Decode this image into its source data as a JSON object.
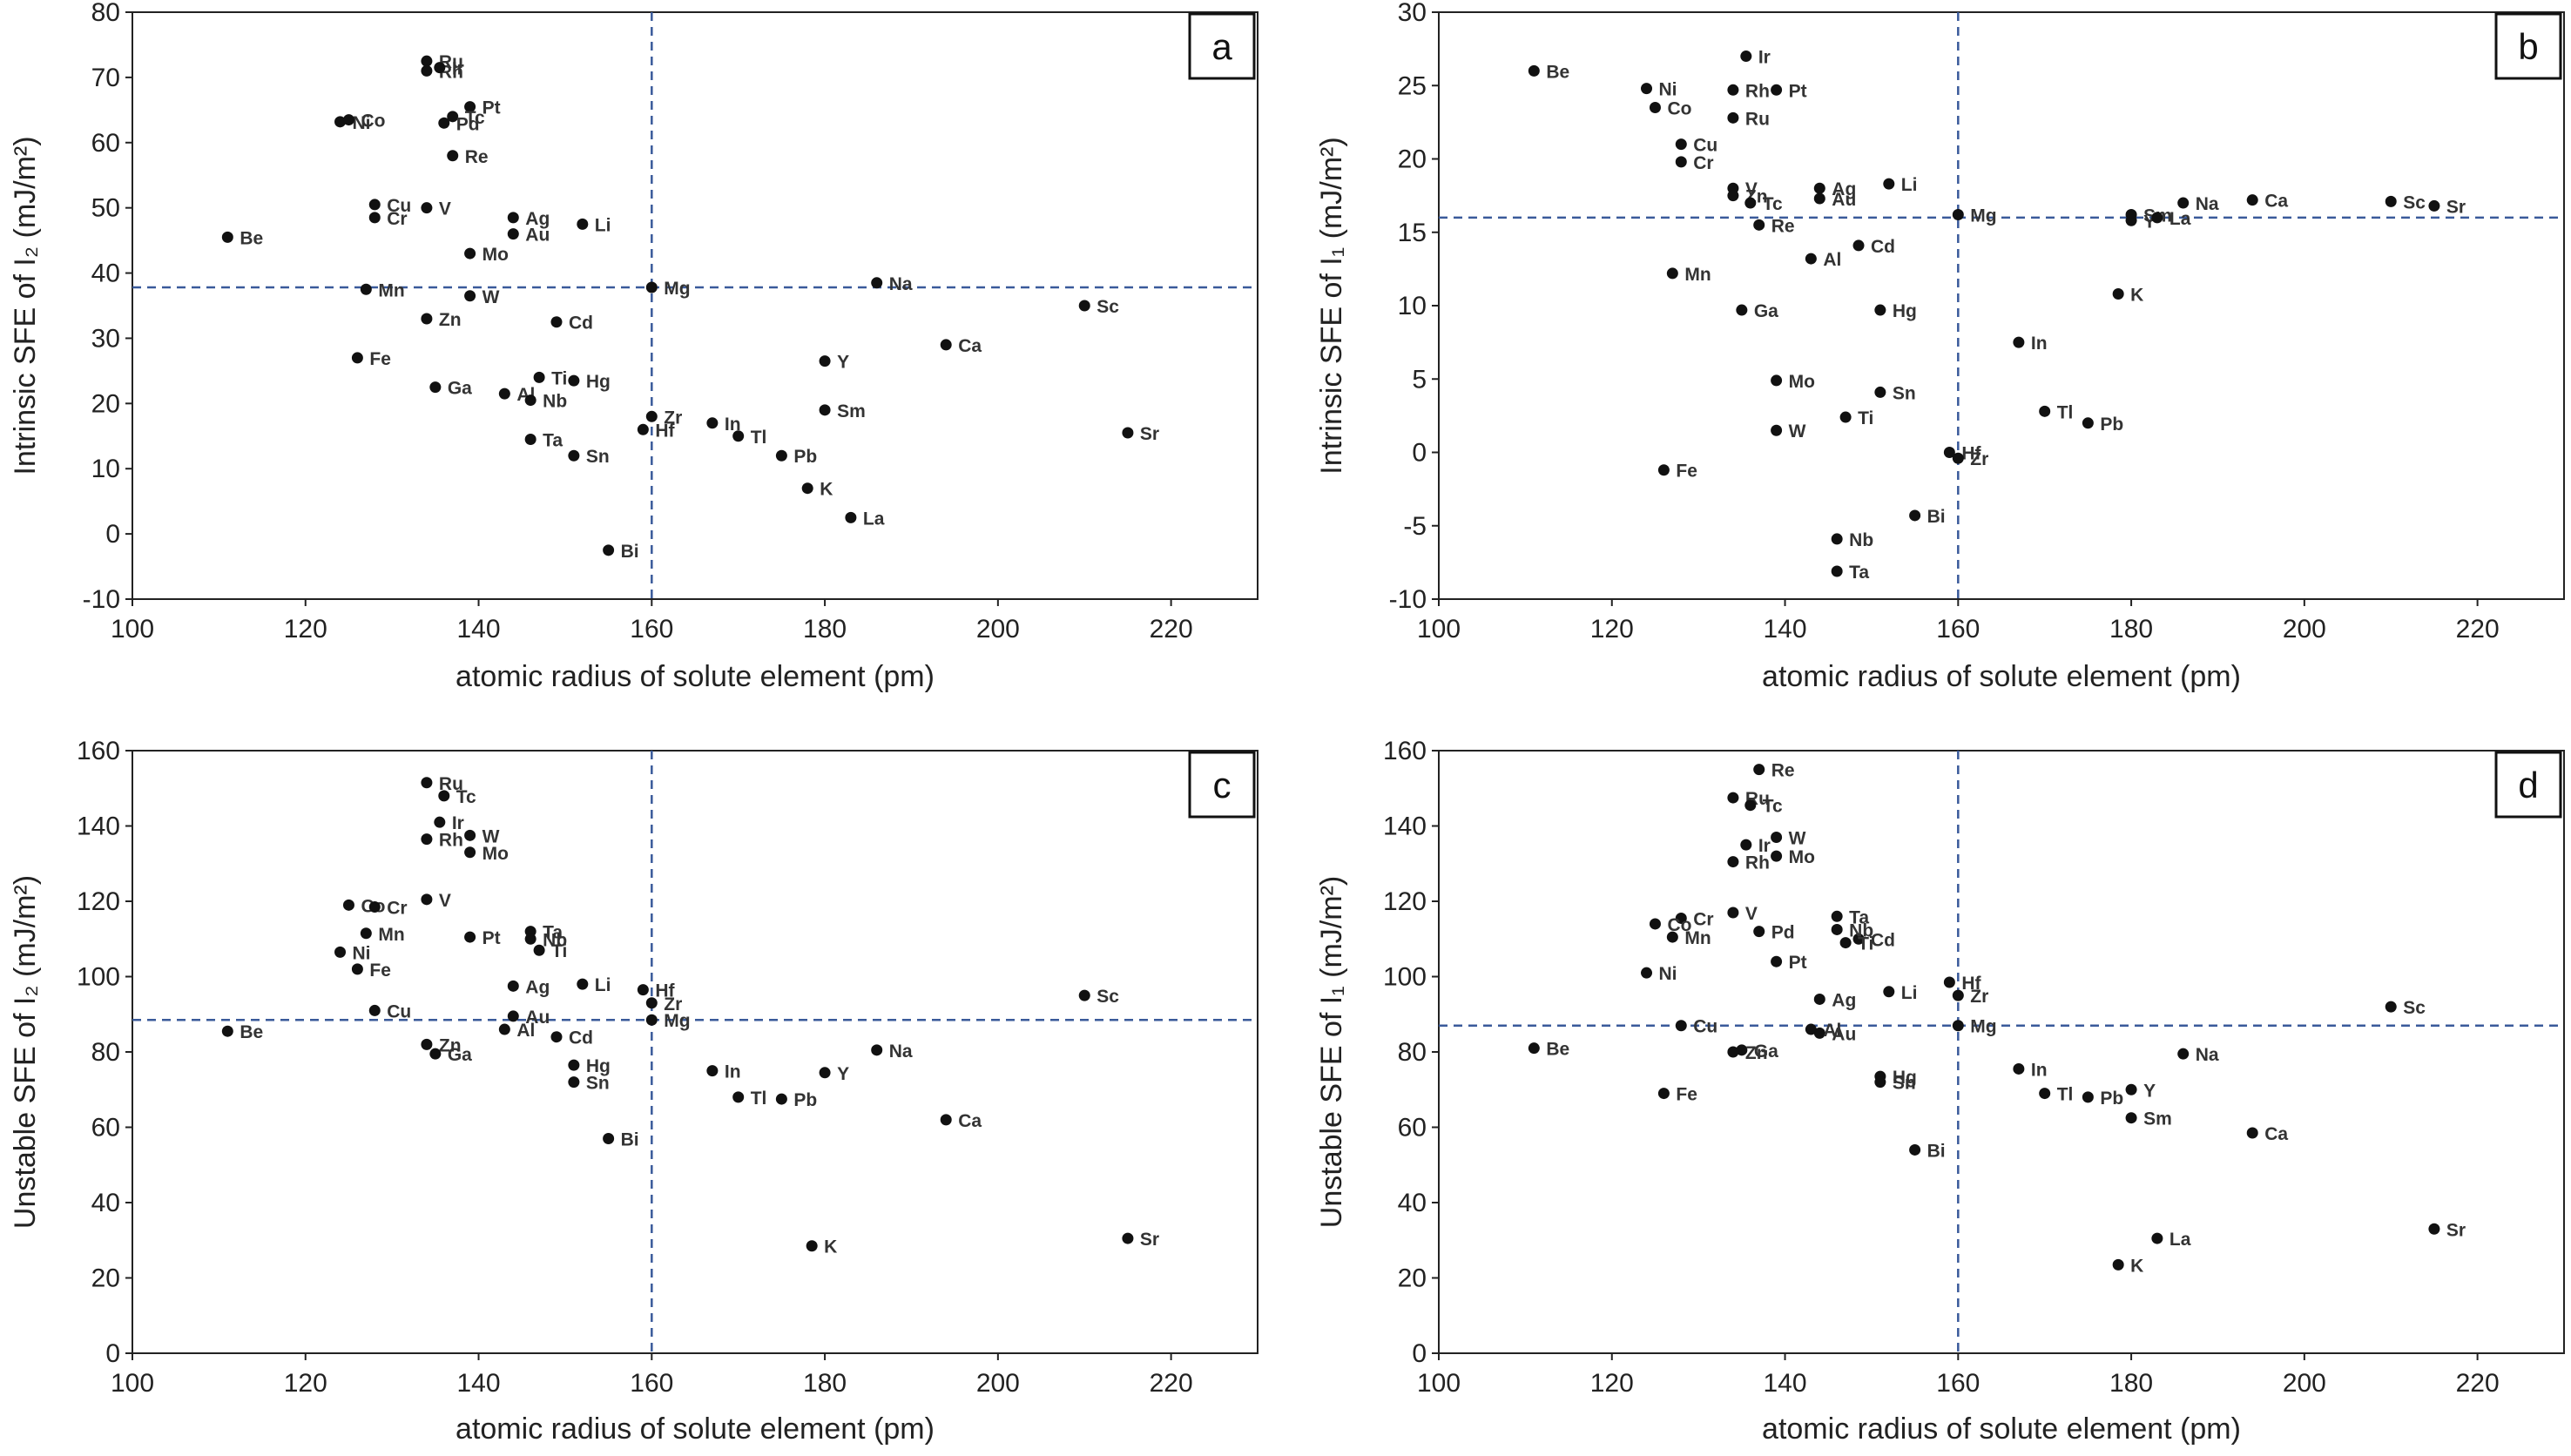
{
  "chart_data": [
    {
      "type": "scatter",
      "panel_label": "a",
      "xlabel": "atomic radius of solute element (pm)",
      "ylabel": "Intrinsic SFE of I₂ (mJ/m²)",
      "xlim": [
        100,
        230
      ],
      "ylim": [
        -10,
        80
      ],
      "xticks": [
        "100",
        "120",
        "140",
        "160",
        "180",
        "200",
        "220"
      ],
      "yticks": [
        "-10",
        "0",
        "10",
        "20",
        "30",
        "40",
        "50",
        "60",
        "70",
        "80"
      ],
      "xtick_values": [
        100,
        120,
        140,
        160,
        180,
        200,
        220
      ],
      "ytick_values": [
        -10,
        0,
        10,
        20,
        30,
        40,
        50,
        60,
        70,
        80
      ],
      "reference_lines": {
        "x": 160,
        "y": 37.8
      },
      "points": [
        {
          "label": "Ru",
          "x": 134,
          "y": 72.5
        },
        {
          "label": "Rh",
          "x": 134,
          "y": 71
        },
        {
          "label": "Ir",
          "x": 135.5,
          "y": 71.5
        },
        {
          "label": "Pt",
          "x": 139,
          "y": 65.5
        },
        {
          "label": "Tc",
          "x": 137,
          "y": 64
        },
        {
          "label": "Pd",
          "x": 136,
          "y": 63
        },
        {
          "label": "Ni",
          "x": 124,
          "y": 63.2
        },
        {
          "label": "Co",
          "x": 125,
          "y": 63.5
        },
        {
          "label": "Re",
          "x": 137,
          "y": 58
        },
        {
          "label": "Cu",
          "x": 128,
          "y": 50.5
        },
        {
          "label": "Cr",
          "x": 128,
          "y": 48.5
        },
        {
          "label": "V",
          "x": 134,
          "y": 50
        },
        {
          "label": "Ag",
          "x": 144,
          "y": 48.5
        },
        {
          "label": "Li",
          "x": 152,
          "y": 47.5
        },
        {
          "label": "Au",
          "x": 144,
          "y": 46
        },
        {
          "label": "Be",
          "x": 111,
          "y": 45.5
        },
        {
          "label": "Mo",
          "x": 139,
          "y": 43
        },
        {
          "label": "Mg",
          "x": 160,
          "y": 37.8
        },
        {
          "label": "Na",
          "x": 186,
          "y": 38.5
        },
        {
          "label": "Mn",
          "x": 127,
          "y": 37.5
        },
        {
          "label": "W",
          "x": 139,
          "y": 36.5
        },
        {
          "label": "Sc",
          "x": 210,
          "y": 35
        },
        {
          "label": "Zn",
          "x": 134,
          "y": 33
        },
        {
          "label": "Cd",
          "x": 149,
          "y": 32.5
        },
        {
          "label": "Ca",
          "x": 194,
          "y": 29
        },
        {
          "label": "Fe",
          "x": 126,
          "y": 27
        },
        {
          "label": "Y",
          "x": 180,
          "y": 26.5
        },
        {
          "label": "Ti",
          "x": 147,
          "y": 24
        },
        {
          "label": "Hg",
          "x": 151,
          "y": 23.5
        },
        {
          "label": "Ga",
          "x": 135,
          "y": 22.5
        },
        {
          "label": "Al",
          "x": 143,
          "y": 21.5
        },
        {
          "label": "Nb",
          "x": 146,
          "y": 20.5
        },
        {
          "label": "Sm",
          "x": 180,
          "y": 19
        },
        {
          "label": "Zr",
          "x": 160,
          "y": 18
        },
        {
          "label": "Hf",
          "x": 159,
          "y": 16
        },
        {
          "label": "In",
          "x": 167,
          "y": 17
        },
        {
          "label": "Sr",
          "x": 215,
          "y": 15.5
        },
        {
          "label": "Tl",
          "x": 170,
          "y": 15
        },
        {
          "label": "Ta",
          "x": 146,
          "y": 14.5
        },
        {
          "label": "Sn",
          "x": 151,
          "y": 12
        },
        {
          "label": "Pb",
          "x": 175,
          "y": 12
        },
        {
          "label": "K",
          "x": 178,
          "y": 7
        },
        {
          "label": "La",
          "x": 183,
          "y": 2.5
        },
        {
          "label": "Bi",
          "x": 155,
          "y": -2.5
        }
      ]
    },
    {
      "type": "scatter",
      "panel_label": "b",
      "xlabel": "atomic radius of solute element (pm)",
      "ylabel": "Intrinsic SFE of I₁ (mJ/m²)",
      "xlim": [
        100,
        230
      ],
      "ylim": [
        -10,
        30
      ],
      "xticks": [
        "100",
        "120",
        "140",
        "160",
        "180",
        "200",
        "220"
      ],
      "yticks": [
        "-10",
        "-5",
        "0",
        "5",
        "10",
        "15",
        "20",
        "25",
        "30"
      ],
      "xtick_values": [
        100,
        120,
        140,
        160,
        180,
        200,
        220
      ],
      "ytick_values": [
        -10,
        -5,
        0,
        5,
        10,
        15,
        20,
        25,
        30
      ],
      "reference_lines": {
        "x": 160,
        "y": 16
      },
      "points": [
        {
          "label": "Ir",
          "x": 135.5,
          "y": 27
        },
        {
          "label": "Be",
          "x": 111,
          "y": 26
        },
        {
          "label": "Ni",
          "x": 124,
          "y": 24.8
        },
        {
          "label": "Rh",
          "x": 134,
          "y": 24.7
        },
        {
          "label": "Pt",
          "x": 139,
          "y": 24.7
        },
        {
          "label": "Co",
          "x": 125,
          "y": 23.5
        },
        {
          "label": "Ru",
          "x": 134,
          "y": 22.8
        },
        {
          "label": "Cu",
          "x": 128,
          "y": 21
        },
        {
          "label": "Cr",
          "x": 128,
          "y": 19.8
        },
        {
          "label": "V",
          "x": 134,
          "y": 18
        },
        {
          "label": "Zn",
          "x": 134,
          "y": 17.5
        },
        {
          "label": "Ag",
          "x": 144,
          "y": 18
        },
        {
          "label": "Li",
          "x": 152,
          "y": 18.3
        },
        {
          "label": "Au",
          "x": 144,
          "y": 17.3
        },
        {
          "label": "Tc",
          "x": 136,
          "y": 17
        },
        {
          "label": "Mg",
          "x": 160,
          "y": 16.2
        },
        {
          "label": "Sm",
          "x": 180,
          "y": 16.2
        },
        {
          "label": "Na",
          "x": 186,
          "y": 17
        },
        {
          "label": "Ca",
          "x": 194,
          "y": 17.2
        },
        {
          "label": "Sc",
          "x": 210,
          "y": 17.1
        },
        {
          "label": "Sr",
          "x": 215,
          "y": 16.8
        },
        {
          "label": "Y",
          "x": 180,
          "y": 15.8
        },
        {
          "label": "La",
          "x": 183,
          "y": 16
        },
        {
          "label": "Re",
          "x": 137,
          "y": 15.5
        },
        {
          "label": "Cd",
          "x": 148.5,
          "y": 14.1
        },
        {
          "label": "Al",
          "x": 143,
          "y": 13.2
        },
        {
          "label": "Mn",
          "x": 127,
          "y": 12.2
        },
        {
          "label": "K",
          "x": 178.5,
          "y": 10.8
        },
        {
          "label": "Ga",
          "x": 135,
          "y": 9.7
        },
        {
          "label": "Hg",
          "x": 151,
          "y": 9.7
        },
        {
          "label": "In",
          "x": 167,
          "y": 7.5
        },
        {
          "label": "Mo",
          "x": 139,
          "y": 4.9
        },
        {
          "label": "Sn",
          "x": 151,
          "y": 4.1
        },
        {
          "label": "Tl",
          "x": 170,
          "y": 2.8
        },
        {
          "label": "Ti",
          "x": 147,
          "y": 2.4
        },
        {
          "label": "Pb",
          "x": 175,
          "y": 2
        },
        {
          "label": "W",
          "x": 139,
          "y": 1.5
        },
        {
          "label": "Hf",
          "x": 159,
          "y": 0
        },
        {
          "label": "Zr",
          "x": 160,
          "y": -0.4
        },
        {
          "label": "Fe",
          "x": 126,
          "y": -1.2
        },
        {
          "label": "Bi",
          "x": 155,
          "y": -4.3
        },
        {
          "label": "Nb",
          "x": 146,
          "y": -5.9
        },
        {
          "label": "Ta",
          "x": 146,
          "y": -8.1
        }
      ]
    },
    {
      "type": "scatter",
      "panel_label": "c",
      "xlabel": "atomic radius of solute element (pm)",
      "ylabel": "Unstable SFE of I₂ (mJ/m²)",
      "xlim": [
        100,
        230
      ],
      "ylim": [
        0,
        160
      ],
      "xticks": [
        "100",
        "120",
        "140",
        "160",
        "180",
        "200",
        "220"
      ],
      "yticks": [
        "0",
        "20",
        "40",
        "60",
        "80",
        "100",
        "120",
        "140",
        "160"
      ],
      "xtick_values": [
        100,
        120,
        140,
        160,
        180,
        200,
        220
      ],
      "ytick_values": [
        0,
        20,
        40,
        60,
        80,
        100,
        120,
        140,
        160
      ],
      "reference_lines": {
        "x": 160,
        "y": 88.5
      },
      "points": [
        {
          "label": "Ru",
          "x": 134,
          "y": 151.5
        },
        {
          "label": "Tc",
          "x": 136,
          "y": 148
        },
        {
          "label": "Ir",
          "x": 135.5,
          "y": 141
        },
        {
          "label": "W",
          "x": 139,
          "y": 137.5
        },
        {
          "label": "Rh",
          "x": 134,
          "y": 136.5
        },
        {
          "label": "Mo",
          "x": 139,
          "y": 133
        },
        {
          "label": "Co",
          "x": 125,
          "y": 119
        },
        {
          "label": "Cr",
          "x": 128,
          "y": 118.5
        },
        {
          "label": "V",
          "x": 134,
          "y": 120.5
        },
        {
          "label": "Mn",
          "x": 127,
          "y": 111.5
        },
        {
          "label": "Ta",
          "x": 146,
          "y": 112
        },
        {
          "label": "Pt",
          "x": 139,
          "y": 110.5
        },
        {
          "label": "Nb",
          "x": 146,
          "y": 110
        },
        {
          "label": "Ti",
          "x": 147,
          "y": 107
        },
        {
          "label": "Ni",
          "x": 124,
          "y": 106.5
        },
        {
          "label": "Fe",
          "x": 126,
          "y": 102
        },
        {
          "label": "Li",
          "x": 152,
          "y": 98
        },
        {
          "label": "Ag",
          "x": 144,
          "y": 97.5
        },
        {
          "label": "Hf",
          "x": 159,
          "y": 96.5
        },
        {
          "label": "Sc",
          "x": 210,
          "y": 95
        },
        {
          "label": "Zr",
          "x": 160,
          "y": 93
        },
        {
          "label": "Cu",
          "x": 128,
          "y": 91
        },
        {
          "label": "Au",
          "x": 144,
          "y": 89.5
        },
        {
          "label": "Mg",
          "x": 160,
          "y": 88.5
        },
        {
          "label": "Be",
          "x": 111,
          "y": 85.5
        },
        {
          "label": "Cd",
          "x": 149,
          "y": 84
        },
        {
          "label": "Zn",
          "x": 134,
          "y": 82
        },
        {
          "label": "Al",
          "x": 143,
          "y": 86
        },
        {
          "label": "Na",
          "x": 186,
          "y": 80.5
        },
        {
          "label": "Ga",
          "x": 135,
          "y": 79.5
        },
        {
          "label": "Hg",
          "x": 151,
          "y": 76.5
        },
        {
          "label": "In",
          "x": 167,
          "y": 75
        },
        {
          "label": "Y",
          "x": 180,
          "y": 74.5
        },
        {
          "label": "Sn",
          "x": 151,
          "y": 72
        },
        {
          "label": "Tl",
          "x": 170,
          "y": 68
        },
        {
          "label": "Pb",
          "x": 175,
          "y": 67.5
        },
        {
          "label": "Ca",
          "x": 194,
          "y": 62
        },
        {
          "label": "Bi",
          "x": 155,
          "y": 57
        },
        {
          "label": "Sr",
          "x": 215,
          "y": 30.5
        },
        {
          "label": "K",
          "x": 178.5,
          "y": 28.5
        }
      ]
    },
    {
      "type": "scatter",
      "panel_label": "d",
      "xlabel": "atomic radius of solute element (pm)",
      "ylabel": "Unstable SFE of I₁ (mJ/m²)",
      "xlim": [
        100,
        230
      ],
      "ylim": [
        0,
        160
      ],
      "xticks": [
        "100",
        "120",
        "140",
        "160",
        "180",
        "200",
        "220"
      ],
      "yticks": [
        "0",
        "20",
        "40",
        "60",
        "80",
        "100",
        "120",
        "140",
        "160"
      ],
      "xtick_values": [
        100,
        120,
        140,
        160,
        180,
        200,
        220
      ],
      "ytick_values": [
        0,
        20,
        40,
        60,
        80,
        100,
        120,
        140,
        160
      ],
      "reference_lines": {
        "x": 160,
        "y": 87
      },
      "points": [
        {
          "label": "Re",
          "x": 137,
          "y": 155
        },
        {
          "label": "Ru",
          "x": 134,
          "y": 147.5
        },
        {
          "label": "Tc",
          "x": 136,
          "y": 145.5
        },
        {
          "label": "Ir",
          "x": 135.5,
          "y": 135
        },
        {
          "label": "W",
          "x": 139,
          "y": 137
        },
        {
          "label": "Rh",
          "x": 134,
          "y": 130.5
        },
        {
          "label": "Mo",
          "x": 139,
          "y": 132
        },
        {
          "label": "Ta",
          "x": 146,
          "y": 116
        },
        {
          "label": "Cd",
          "x": 148.5,
          "y": 110
        },
        {
          "label": "V",
          "x": 134,
          "y": 117
        },
        {
          "label": "Cr",
          "x": 128,
          "y": 115.5
        },
        {
          "label": "Co",
          "x": 125,
          "y": 114
        },
        {
          "label": "Nb",
          "x": 146,
          "y": 112.5
        },
        {
          "label": "Pd",
          "x": 137,
          "y": 112
        },
        {
          "label": "Mn",
          "x": 127,
          "y": 110.5
        },
        {
          "label": "Ti",
          "x": 147,
          "y": 109
        },
        {
          "label": "Pt",
          "x": 139,
          "y": 104
        },
        {
          "label": "Ni",
          "x": 124,
          "y": 101
        },
        {
          "label": "Hf",
          "x": 159,
          "y": 98.5
        },
        {
          "label": "Li",
          "x": 152,
          "y": 96
        },
        {
          "label": "Zr",
          "x": 160,
          "y": 95
        },
        {
          "label": "Ag",
          "x": 144,
          "y": 94
        },
        {
          "label": "Sc",
          "x": 210,
          "y": 92
        },
        {
          "label": "Mg",
          "x": 160,
          "y": 87
        },
        {
          "label": "Cu",
          "x": 128,
          "y": 87
        },
        {
          "label": "Au",
          "x": 144,
          "y": 85
        },
        {
          "label": "Al",
          "x": 143,
          "y": 86
        },
        {
          "label": "Be",
          "x": 111,
          "y": 81
        },
        {
          "label": "Ga",
          "x": 135,
          "y": 80.5
        },
        {
          "label": "Zn",
          "x": 134,
          "y": 80
        },
        {
          "label": "Na",
          "x": 186,
          "y": 79.5
        },
        {
          "label": "In",
          "x": 167,
          "y": 75.5
        },
        {
          "label": "Hg",
          "x": 151,
          "y": 73.5
        },
        {
          "label": "Sn",
          "x": 151,
          "y": 72
        },
        {
          "label": "Y",
          "x": 180,
          "y": 70
        },
        {
          "label": "Pb",
          "x": 175,
          "y": 68
        },
        {
          "label": "Tl",
          "x": 170,
          "y": 69
        },
        {
          "label": "Fe",
          "x": 126,
          "y": 69
        },
        {
          "label": "Sm",
          "x": 180,
          "y": 62.5
        },
        {
          "label": "Ca",
          "x": 194,
          "y": 58.5
        },
        {
          "label": "Bi",
          "x": 155,
          "y": 54
        },
        {
          "label": "Sr",
          "x": 215,
          "y": 33
        },
        {
          "label": "La",
          "x": 183,
          "y": 30.5
        },
        {
          "label": "K",
          "x": 178.5,
          "y": 23.5
        }
      ]
    }
  ]
}
